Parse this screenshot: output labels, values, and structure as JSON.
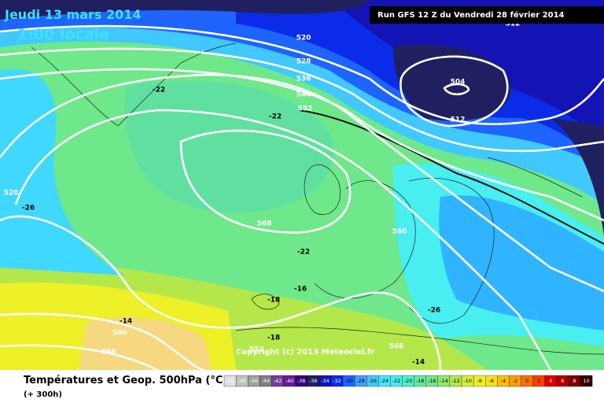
{
  "header": {
    "date": "Jeudi 13 mars 2014",
    "time": "1:00 locale",
    "run": "Run GFS 12 Z du Vendredi 28 février 2014"
  },
  "footer": {
    "title": "Températures et Geop. 500hPa (°C)",
    "lead": "(+ 300h)",
    "copyright": "Copyright (c) 2013 Meteociel.fr"
  },
  "geopotential_labels": [
    "520",
    "528",
    "536",
    "544",
    "552",
    "504",
    "512",
    "512",
    "520",
    "568",
    "560",
    "560",
    "568",
    "552",
    "568"
  ],
  "temperature_labels": [
    "-22",
    "-22",
    "-26",
    "-22",
    "-18",
    "-18",
    "-26",
    "-14",
    "-16",
    "-14"
  ],
  "scale": [
    "-50",
    "-48",
    "-46",
    "-44",
    "-42",
    "-40",
    "-38",
    "-36",
    "-34",
    "-32",
    "-30",
    "-28",
    "-26",
    "-24",
    "-22",
    "-20",
    "-18",
    "-16",
    "-14",
    "-12",
    "-10",
    "-8",
    "-6",
    "-4",
    "-2",
    "0",
    "2",
    "4",
    "6",
    "8",
    "10"
  ]
}
